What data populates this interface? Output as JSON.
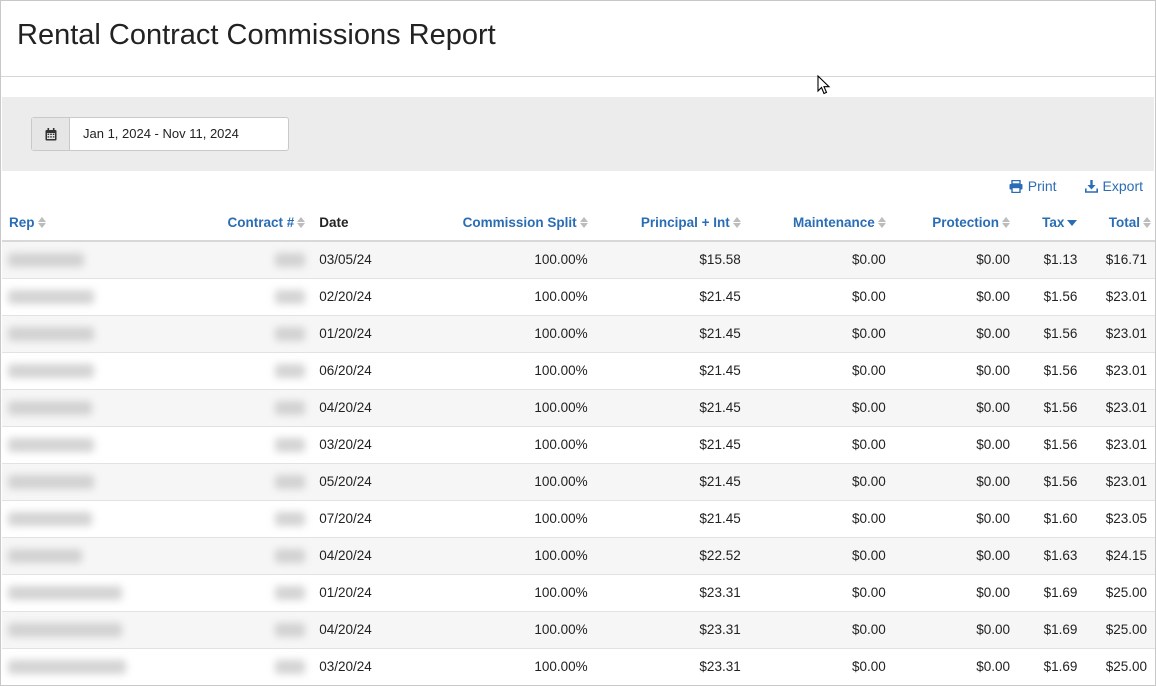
{
  "page": {
    "title": "Rental Contract Commissions Report"
  },
  "filter": {
    "date_range": "Jan 1, 2024 - Nov 11, 2024",
    "calendar_icon": "calendar-icon"
  },
  "actions": {
    "print_label": "Print",
    "export_label": "Export"
  },
  "table": {
    "columns": [
      "Rep",
      "Contract #",
      "Date",
      "Commission Split",
      "Principal + Int",
      "Maintenance",
      "Protection",
      "Tax",
      "Total"
    ],
    "sorted_column": "Tax",
    "sort_direction": "descending",
    "rows": [
      {
        "date": "03/05/24",
        "split": "100.00%",
        "principal": "$15.58",
        "maintenance": "$0.00",
        "protection": "$0.00",
        "tax": "$1.13",
        "total": "$16.71"
      },
      {
        "date": "02/20/24",
        "split": "100.00%",
        "principal": "$21.45",
        "maintenance": "$0.00",
        "protection": "$0.00",
        "tax": "$1.56",
        "total": "$23.01"
      },
      {
        "date": "01/20/24",
        "split": "100.00%",
        "principal": "$21.45",
        "maintenance": "$0.00",
        "protection": "$0.00",
        "tax": "$1.56",
        "total": "$23.01"
      },
      {
        "date": "06/20/24",
        "split": "100.00%",
        "principal": "$21.45",
        "maintenance": "$0.00",
        "protection": "$0.00",
        "tax": "$1.56",
        "total": "$23.01"
      },
      {
        "date": "04/20/24",
        "split": "100.00%",
        "principal": "$21.45",
        "maintenance": "$0.00",
        "protection": "$0.00",
        "tax": "$1.56",
        "total": "$23.01"
      },
      {
        "date": "03/20/24",
        "split": "100.00%",
        "principal": "$21.45",
        "maintenance": "$0.00",
        "protection": "$0.00",
        "tax": "$1.56",
        "total": "$23.01"
      },
      {
        "date": "05/20/24",
        "split": "100.00%",
        "principal": "$21.45",
        "maintenance": "$0.00",
        "protection": "$0.00",
        "tax": "$1.56",
        "total": "$23.01"
      },
      {
        "date": "07/20/24",
        "split": "100.00%",
        "principal": "$21.45",
        "maintenance": "$0.00",
        "protection": "$0.00",
        "tax": "$1.60",
        "total": "$23.05"
      },
      {
        "date": "04/20/24",
        "split": "100.00%",
        "principal": "$22.52",
        "maintenance": "$0.00",
        "protection": "$0.00",
        "tax": "$1.63",
        "total": "$24.15"
      },
      {
        "date": "01/20/24",
        "split": "100.00%",
        "principal": "$23.31",
        "maintenance": "$0.00",
        "protection": "$0.00",
        "tax": "$1.69",
        "total": "$25.00"
      },
      {
        "date": "04/20/24",
        "split": "100.00%",
        "principal": "$23.31",
        "maintenance": "$0.00",
        "protection": "$0.00",
        "tax": "$1.69",
        "total": "$25.00"
      },
      {
        "date": "03/20/24",
        "split": "100.00%",
        "principal": "$23.31",
        "maintenance": "$0.00",
        "protection": "$0.00",
        "tax": "$1.69",
        "total": "$25.00"
      }
    ]
  },
  "colors": {
    "accent": "#2a6db5",
    "band": "#ececec",
    "row_alt": "#f6f6f6"
  }
}
